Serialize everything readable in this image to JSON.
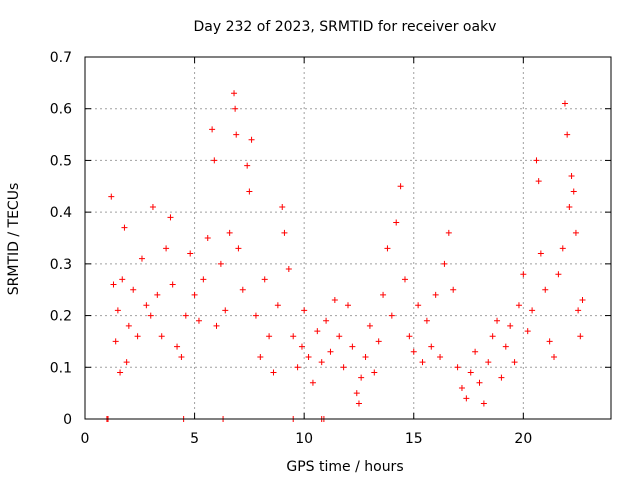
{
  "chart_data": {
    "type": "scatter",
    "title": "Day 232 of 2023, SRMTID for receiver oakv",
    "xlabel": "GPS time / hours",
    "ylabel": "SRMTID / TECUs",
    "xlim": [
      0,
      24
    ],
    "ylim": [
      0,
      0.7
    ],
    "x_ticks": [
      0,
      5,
      10,
      15,
      20
    ],
    "x_tick_labels": [
      "0",
      "5",
      "10",
      "15",
      "20"
    ],
    "y_ticks": [
      0,
      0.1,
      0.2,
      0.3,
      0.4,
      0.5,
      0.6,
      0.7
    ],
    "y_tick_labels": [
      "0",
      "0.1",
      "0.2",
      "0.3",
      "0.4",
      "0.5",
      "0.6",
      "0.7"
    ],
    "grid": true,
    "marker": "+",
    "series": [
      {
        "name": "SRMTID",
        "color": "#ff0000",
        "points": [
          [
            1.0,
            0.0
          ],
          [
            1.05,
            0.0
          ],
          [
            4.5,
            0.0
          ],
          [
            6.3,
            0.0
          ],
          [
            9.5,
            0.0
          ],
          [
            10.8,
            0.0
          ],
          [
            10.9,
            0.0
          ],
          [
            1.2,
            0.43
          ],
          [
            1.3,
            0.26
          ],
          [
            1.4,
            0.15
          ],
          [
            1.5,
            0.21
          ],
          [
            1.6,
            0.09
          ],
          [
            1.7,
            0.27
          ],
          [
            1.8,
            0.37
          ],
          [
            1.9,
            0.11
          ],
          [
            2.0,
            0.18
          ],
          [
            2.2,
            0.25
          ],
          [
            2.4,
            0.16
          ],
          [
            2.6,
            0.31
          ],
          [
            2.8,
            0.22
          ],
          [
            3.0,
            0.2
          ],
          [
            3.1,
            0.41
          ],
          [
            3.3,
            0.24
          ],
          [
            3.5,
            0.16
          ],
          [
            3.7,
            0.33
          ],
          [
            3.9,
            0.39
          ],
          [
            4.0,
            0.26
          ],
          [
            4.2,
            0.14
          ],
          [
            4.4,
            0.12
          ],
          [
            4.6,
            0.2
          ],
          [
            4.8,
            0.32
          ],
          [
            5.0,
            0.24
          ],
          [
            5.2,
            0.19
          ],
          [
            5.4,
            0.27
          ],
          [
            5.6,
            0.35
          ],
          [
            5.8,
            0.56
          ],
          [
            5.9,
            0.5
          ],
          [
            6.0,
            0.18
          ],
          [
            6.2,
            0.3
          ],
          [
            6.4,
            0.21
          ],
          [
            6.6,
            0.36
          ],
          [
            6.8,
            0.63
          ],
          [
            6.85,
            0.6
          ],
          [
            6.9,
            0.55
          ],
          [
            7.0,
            0.33
          ],
          [
            7.2,
            0.25
          ],
          [
            7.4,
            0.49
          ],
          [
            7.5,
            0.44
          ],
          [
            7.6,
            0.54
          ],
          [
            7.8,
            0.2
          ],
          [
            8.0,
            0.12
          ],
          [
            8.2,
            0.27
          ],
          [
            8.4,
            0.16
          ],
          [
            8.6,
            0.09
          ],
          [
            8.8,
            0.22
          ],
          [
            9.0,
            0.41
          ],
          [
            9.1,
            0.36
          ],
          [
            9.3,
            0.29
          ],
          [
            9.5,
            0.16
          ],
          [
            9.7,
            0.1
          ],
          [
            9.9,
            0.14
          ],
          [
            10.0,
            0.21
          ],
          [
            10.2,
            0.12
          ],
          [
            10.4,
            0.07
          ],
          [
            10.6,
            0.17
          ],
          [
            10.8,
            0.11
          ],
          [
            11.0,
            0.19
          ],
          [
            11.2,
            0.13
          ],
          [
            11.4,
            0.23
          ],
          [
            11.6,
            0.16
          ],
          [
            11.8,
            0.1
          ],
          [
            12.0,
            0.22
          ],
          [
            12.2,
            0.14
          ],
          [
            12.4,
            0.05
          ],
          [
            12.5,
            0.03
          ],
          [
            12.6,
            0.08
          ],
          [
            12.8,
            0.12
          ],
          [
            13.0,
            0.18
          ],
          [
            13.2,
            0.09
          ],
          [
            13.4,
            0.15
          ],
          [
            13.6,
            0.24
          ],
          [
            13.8,
            0.33
          ],
          [
            14.0,
            0.2
          ],
          [
            14.2,
            0.38
          ],
          [
            14.4,
            0.45
          ],
          [
            14.6,
            0.27
          ],
          [
            14.8,
            0.16
          ],
          [
            15.0,
            0.13
          ],
          [
            15.2,
            0.22
          ],
          [
            15.4,
            0.11
          ],
          [
            15.6,
            0.19
          ],
          [
            15.8,
            0.14
          ],
          [
            16.0,
            0.24
          ],
          [
            16.2,
            0.12
          ],
          [
            16.4,
            0.3
          ],
          [
            16.6,
            0.36
          ],
          [
            16.8,
            0.25
          ],
          [
            17.0,
            0.1
          ],
          [
            17.2,
            0.06
          ],
          [
            17.4,
            0.04
          ],
          [
            17.6,
            0.09
          ],
          [
            17.8,
            0.13
          ],
          [
            18.0,
            0.07
          ],
          [
            18.2,
            0.03
          ],
          [
            18.4,
            0.11
          ],
          [
            18.6,
            0.16
          ],
          [
            18.8,
            0.19
          ],
          [
            19.0,
            0.08
          ],
          [
            19.2,
            0.14
          ],
          [
            19.4,
            0.18
          ],
          [
            19.6,
            0.11
          ],
          [
            19.8,
            0.22
          ],
          [
            20.0,
            0.28
          ],
          [
            20.2,
            0.17
          ],
          [
            20.4,
            0.21
          ],
          [
            20.6,
            0.5
          ],
          [
            20.7,
            0.46
          ],
          [
            20.8,
            0.32
          ],
          [
            21.0,
            0.25
          ],
          [
            21.2,
            0.15
          ],
          [
            21.4,
            0.12
          ],
          [
            21.6,
            0.28
          ],
          [
            21.8,
            0.33
          ],
          [
            21.9,
            0.61
          ],
          [
            22.0,
            0.55
          ],
          [
            22.1,
            0.41
          ],
          [
            22.2,
            0.47
          ],
          [
            22.3,
            0.44
          ],
          [
            22.4,
            0.36
          ],
          [
            22.5,
            0.21
          ],
          [
            22.6,
            0.16
          ],
          [
            22.7,
            0.23
          ]
        ]
      }
    ]
  }
}
